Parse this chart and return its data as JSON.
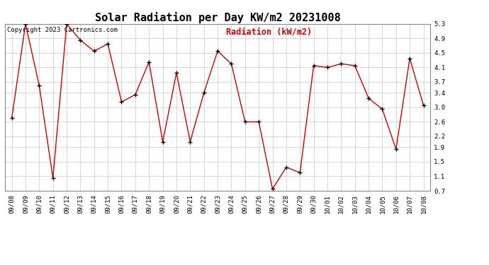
{
  "title": "Solar Radiation per Day KW/m2 20231008",
  "copyright_text": "Copyright 2023 Cartronics.com",
  "legend_label": "Radiation (kW/m2)",
  "dates": [
    "09/08",
    "09/09",
    "09/10",
    "09/11",
    "09/12",
    "09/13",
    "09/14",
    "09/15",
    "09/16",
    "09/17",
    "09/18",
    "09/19",
    "09/20",
    "09/21",
    "09/22",
    "09/23",
    "09/24",
    "09/25",
    "09/26",
    "09/27",
    "09/28",
    "09/29",
    "09/30",
    "10/01",
    "10/02",
    "10/03",
    "10/04",
    "10/05",
    "10/06",
    "10/07",
    "10/08"
  ],
  "values": [
    2.7,
    5.3,
    3.6,
    1.05,
    5.3,
    4.85,
    4.55,
    4.75,
    3.15,
    3.35,
    4.25,
    2.05,
    3.95,
    2.05,
    3.4,
    4.55,
    4.2,
    2.6,
    2.6,
    0.75,
    1.35,
    1.2,
    4.15,
    4.1,
    4.2,
    4.15,
    3.25,
    2.95,
    1.85,
    4.35,
    3.05
  ],
  "ylim": [
    0.7,
    5.3
  ],
  "yticks": [
    0.7,
    1.1,
    1.5,
    1.9,
    2.2,
    2.6,
    3.0,
    3.4,
    3.7,
    4.1,
    4.5,
    4.9,
    5.3
  ],
  "line_color": "#cc0000",
  "marker_color": "#000000",
  "background_color": "#ffffff",
  "grid_color": "#aaaaaa",
  "title_fontsize": 11,
  "copyright_fontsize": 6.5,
  "legend_fontsize": 8.5,
  "tick_fontsize": 6.5
}
